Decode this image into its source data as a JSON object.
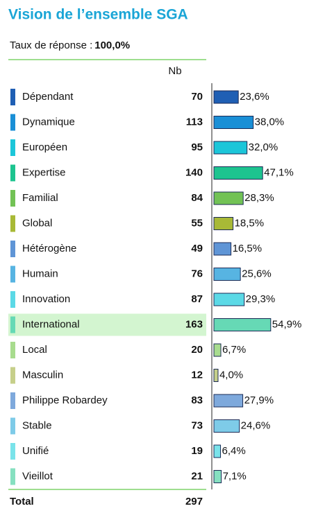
{
  "chart_data": {
    "type": "bar",
    "title": "Vision de l’ensemble SGA",
    "subtitle": "Taux de réponse :",
    "response_rate": "100,0%",
    "count_header": "Nb",
    "categories": [
      "Dépendant",
      "Dynamique",
      "Européen",
      "Expertise",
      "Familial",
      "Global",
      "Hétérogène",
      "Humain",
      "Innovation",
      "International",
      "Local",
      "Masculin",
      "Philippe Robardey",
      "Stable",
      "Unifié",
      "Vieillot"
    ],
    "counts": [
      70,
      113,
      95,
      140,
      84,
      55,
      49,
      76,
      87,
      163,
      20,
      12,
      83,
      73,
      19,
      21
    ],
    "values": [
      23.6,
      38.0,
      32.0,
      47.1,
      28.3,
      18.5,
      16.5,
      25.6,
      29.3,
      54.9,
      6.7,
      4.0,
      27.9,
      24.6,
      6.4,
      7.1
    ],
    "value_labels": [
      "23,6%",
      "38,0%",
      "32,0%",
      "47,1%",
      "28,3%",
      "18,5%",
      "16,5%",
      "25,6%",
      "29,3%",
      "54,9%",
      "6,7%",
      "4,0%",
      "27,9%",
      "24,6%",
      "6,4%",
      "7,1%"
    ],
    "colors": [
      "#1f5fb4",
      "#1a8fd6",
      "#1cc6d9",
      "#1dc48f",
      "#72c255",
      "#a8b936",
      "#5f95d6",
      "#57b4e2",
      "#5bd9e6",
      "#66d9b5",
      "#a8dc8e",
      "#c6cf8a",
      "#7ea9dc",
      "#7ecbe8",
      "#7ae3ea",
      "#86e0c0"
    ],
    "highlight": "International",
    "total_label": "Total",
    "total": 297
  }
}
